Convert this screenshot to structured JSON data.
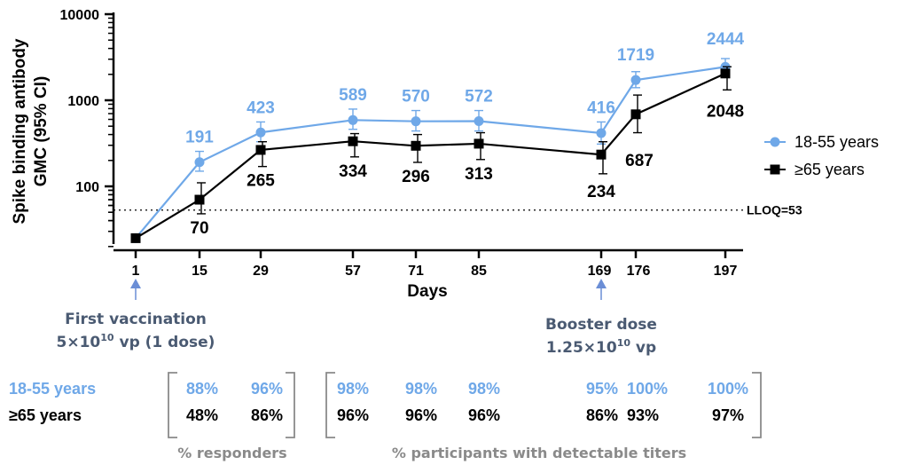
{
  "chart_data": {
    "type": "line",
    "xlabel": "Days",
    "ylabel_line1": "Spike binding antibody",
    "ylabel_line2": "GMC (95% CI)",
    "yscale": "log",
    "ylim": [
      20,
      10000
    ],
    "yticks": [
      "10000",
      "1000",
      "100"
    ],
    "x": [
      1,
      15,
      29,
      57,
      71,
      85,
      169,
      176,
      197
    ],
    "xtick_labels": [
      "1",
      "15",
      "29",
      "57",
      "71",
      "85",
      "169",
      "176",
      "197"
    ],
    "lloq": {
      "value": 53,
      "label": "LLOQ=53"
    },
    "legend_position": "right",
    "series": [
      {
        "name": "18-55 years",
        "color": "#6fa8e8",
        "marker": "circle",
        "values": [
          25,
          191,
          423,
          589,
          570,
          572,
          416,
          1719,
          2444
        ],
        "ci_low": [
          25,
          150,
          330,
          460,
          440,
          440,
          310,
          1400,
          2100
        ],
        "ci_high": [
          25,
          255,
          560,
          790,
          760,
          760,
          560,
          2150,
          3050
        ],
        "labels": [
          "",
          "191",
          "423",
          "589",
          "570",
          "572",
          "416",
          "1719",
          "2444"
        ]
      },
      {
        "name": "≥65 years",
        "color": "#000000",
        "marker": "square",
        "values": [
          25,
          70,
          265,
          334,
          296,
          313,
          234,
          687,
          2048
        ],
        "ci_low": [
          25,
          48,
          170,
          220,
          190,
          205,
          140,
          420,
          1320
        ],
        "ci_high": [
          25,
          110,
          330,
          410,
          400,
          420,
          330,
          1150,
          2450
        ],
        "labels": [
          "",
          "70",
          "265",
          "334",
          "296",
          "313",
          "234",
          "687",
          "2048"
        ]
      }
    ]
  },
  "annotations": {
    "first_vaccination": {
      "line1": "First vaccination",
      "line2_base": "5×10",
      "line2_exp": "10",
      "line2_rest": " vp (1 dose)"
    },
    "booster": {
      "line1": "Booster dose",
      "line2_base": "1.25×10",
      "line2_exp": "10",
      "line2_rest": " vp"
    }
  },
  "table": {
    "row_labels": [
      "18-55 years",
      "≥65 years"
    ],
    "responders_label": "% responders",
    "detectable_label": "% participants with detectable titers",
    "responders_young": [
      "88%",
      "96%"
    ],
    "responders_old": [
      "48%",
      "86%"
    ],
    "detect_young": [
      "98%",
      "98%",
      "98%",
      "95%",
      "100%",
      "100%"
    ],
    "detect_old": [
      "96%",
      "96%",
      "96%",
      "86%",
      "93%",
      "97%"
    ]
  },
  "colors": {
    "young": "#6fa8e8",
    "old": "#000000",
    "annotation": "#4a5a72",
    "bracket": "#8a8a8a"
  }
}
